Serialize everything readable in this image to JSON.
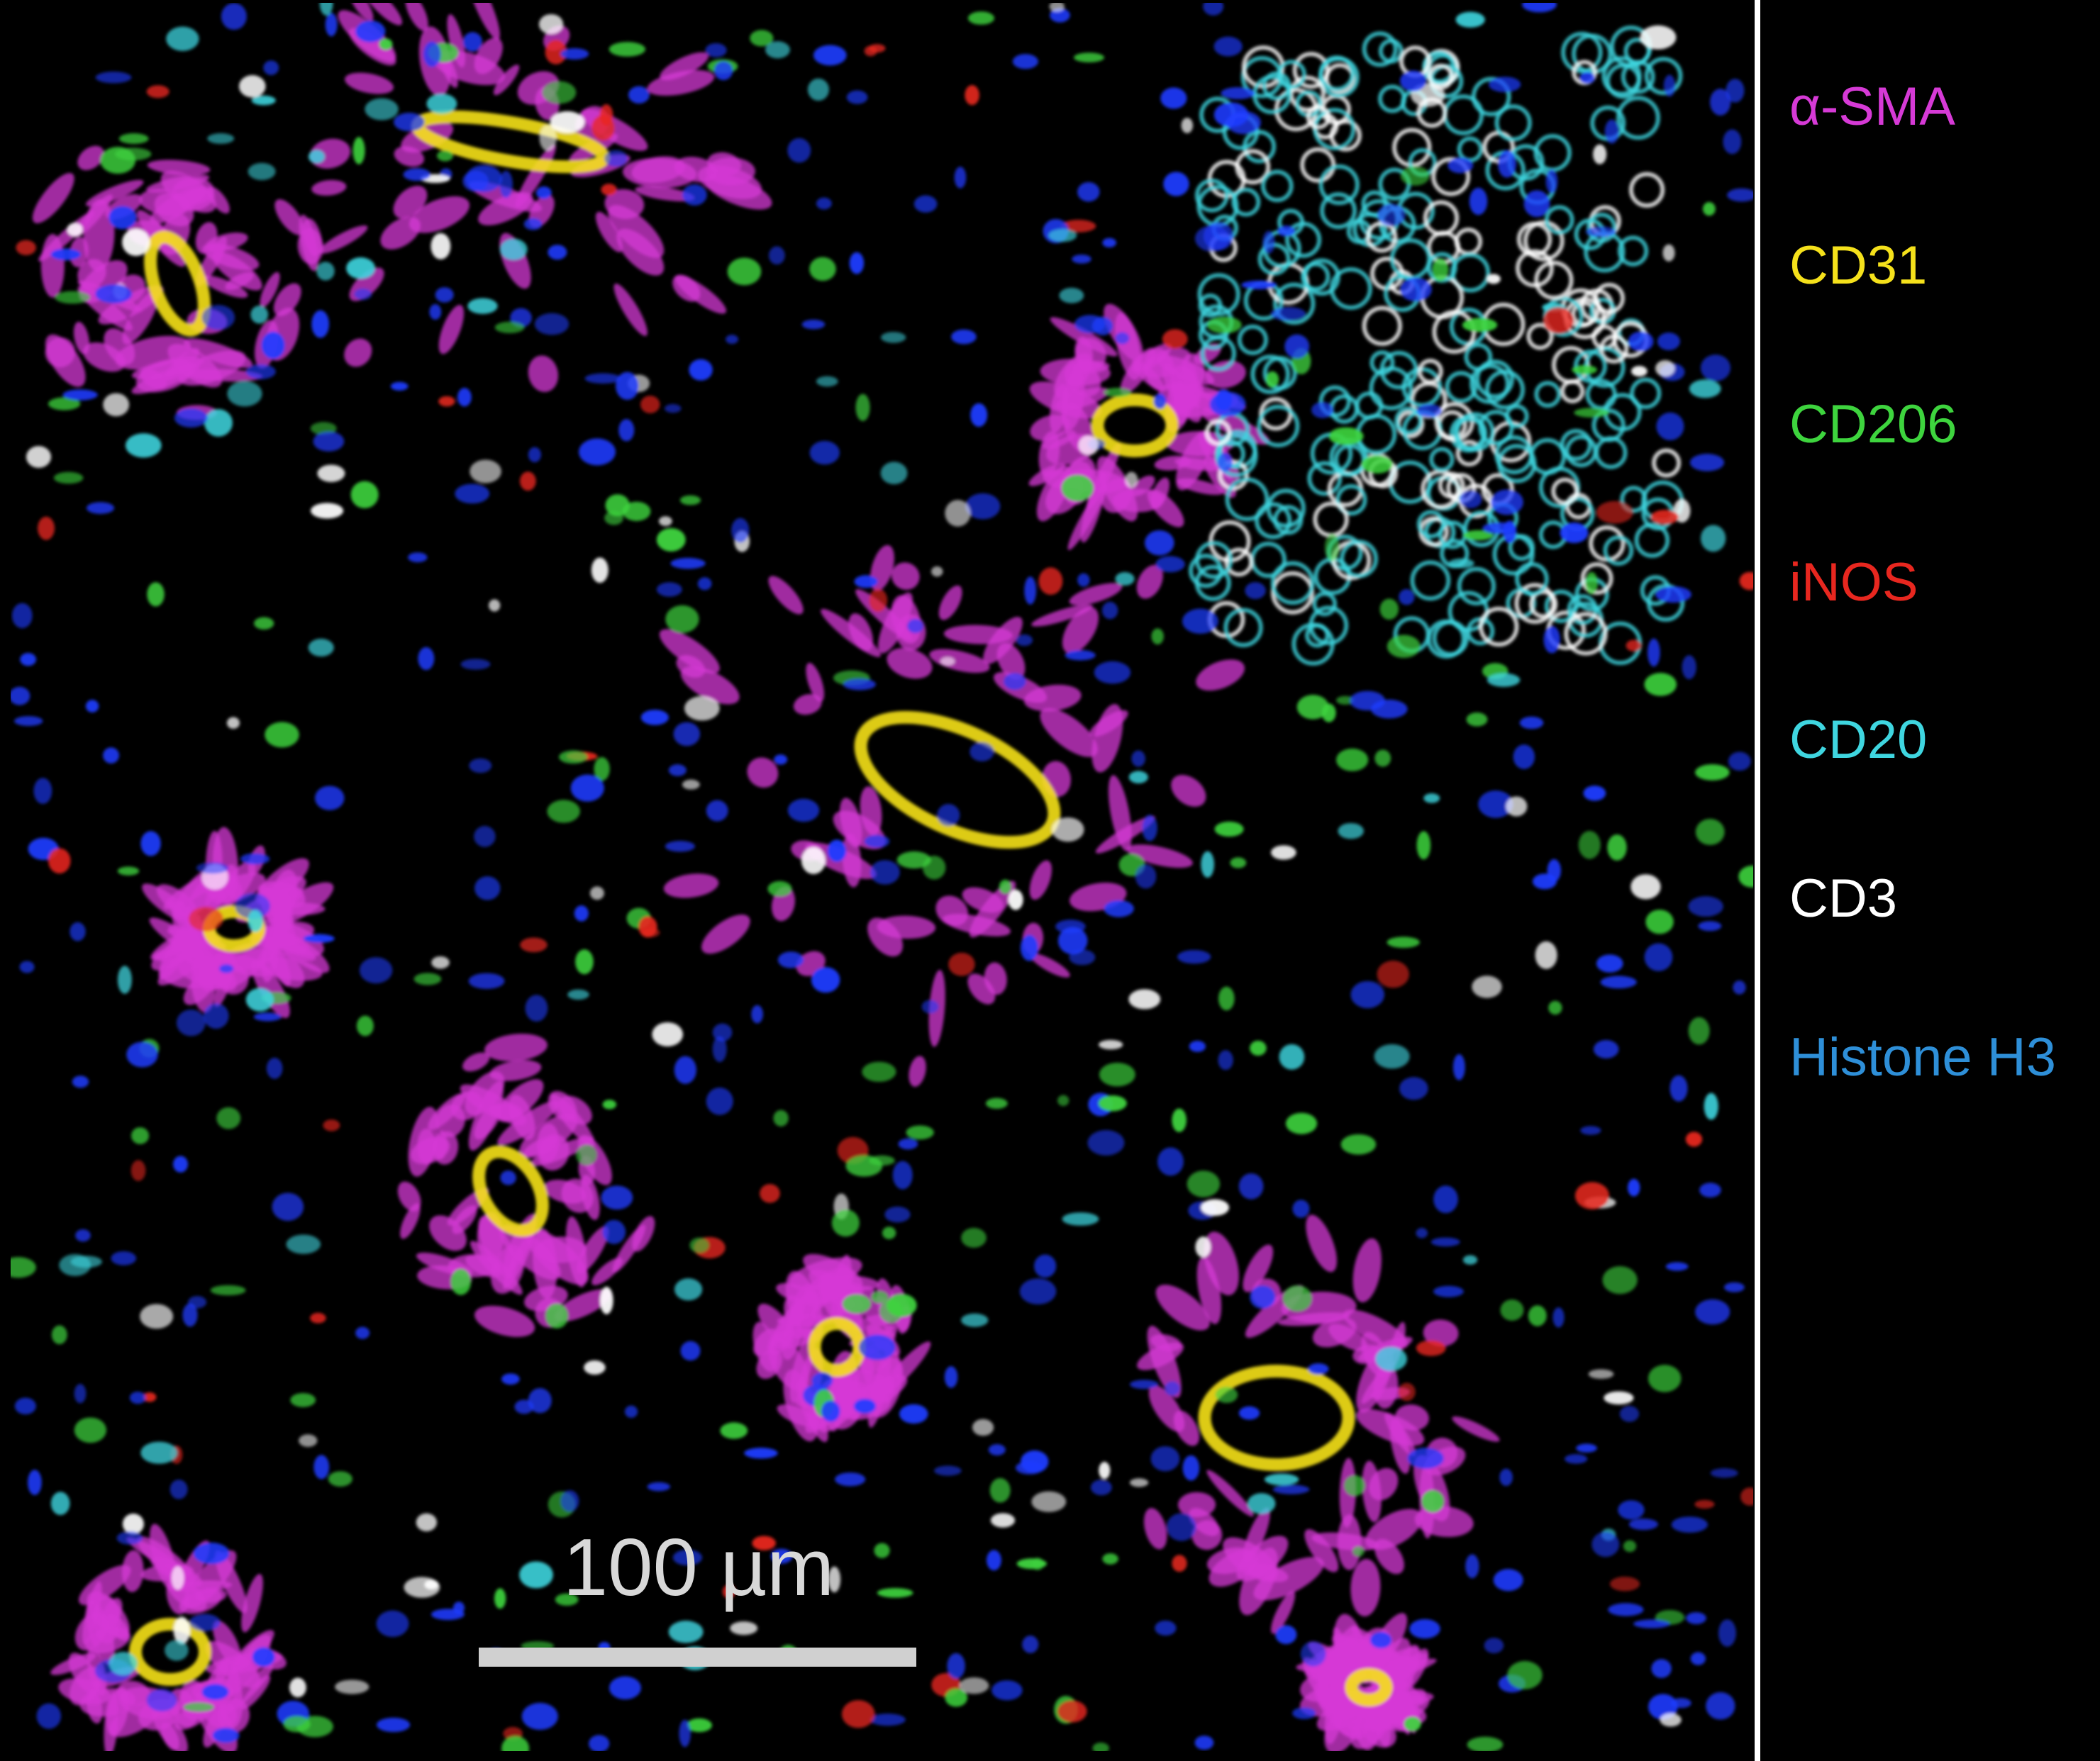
{
  "legend": [
    {
      "label": "α-SMA",
      "color": "#d63ad6"
    },
    {
      "label": "CD31",
      "color": "#f5e11b"
    },
    {
      "label": "CD206",
      "color": "#3ed43e"
    },
    {
      "label": "iNOS",
      "color": "#e8271f"
    },
    {
      "label": "CD20",
      "color": "#3fd6e0"
    },
    {
      "label": "CD3",
      "color": "#ffffff"
    },
    {
      "label": "Histone H3",
      "color": "#2e8fd8"
    }
  ],
  "scale_bar": {
    "label": "100 µm"
  }
}
